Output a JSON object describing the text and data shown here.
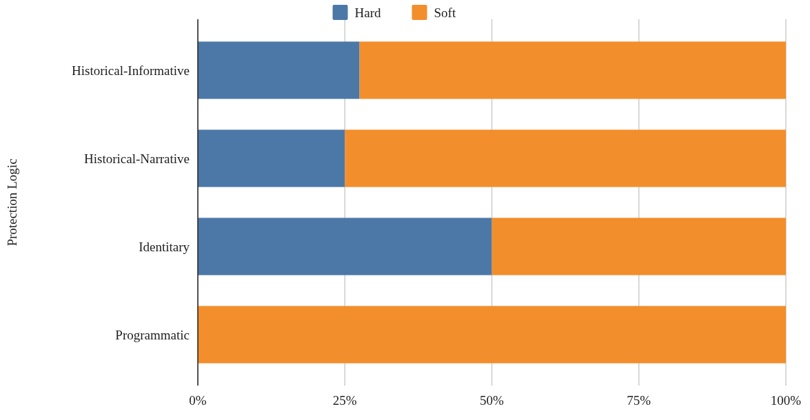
{
  "chart_data": {
    "type": "bar",
    "orientation": "horizontal",
    "stacked": true,
    "ylabel": "Protection Logic",
    "categories": [
      "Historical-Informative",
      "Historical-Narrative",
      "Identitary",
      "Programmatic"
    ],
    "series": [
      {
        "name": "Hard",
        "color": "#4c78a8",
        "values": [
          27.5,
          25,
          50,
          0
        ]
      },
      {
        "name": "Soft",
        "color": "#f28e2b",
        "values": [
          72.5,
          75,
          50,
          100
        ]
      }
    ],
    "xlim": [
      0,
      100
    ],
    "xticks": [
      {
        "value": 0,
        "label": "0%"
      },
      {
        "value": 25,
        "label": "25%"
      },
      {
        "value": 50,
        "label": "50%"
      },
      {
        "value": 75,
        "label": "75%"
      },
      {
        "value": 100,
        "label": "100%"
      }
    ],
    "grid": "x",
    "legend": "top"
  }
}
